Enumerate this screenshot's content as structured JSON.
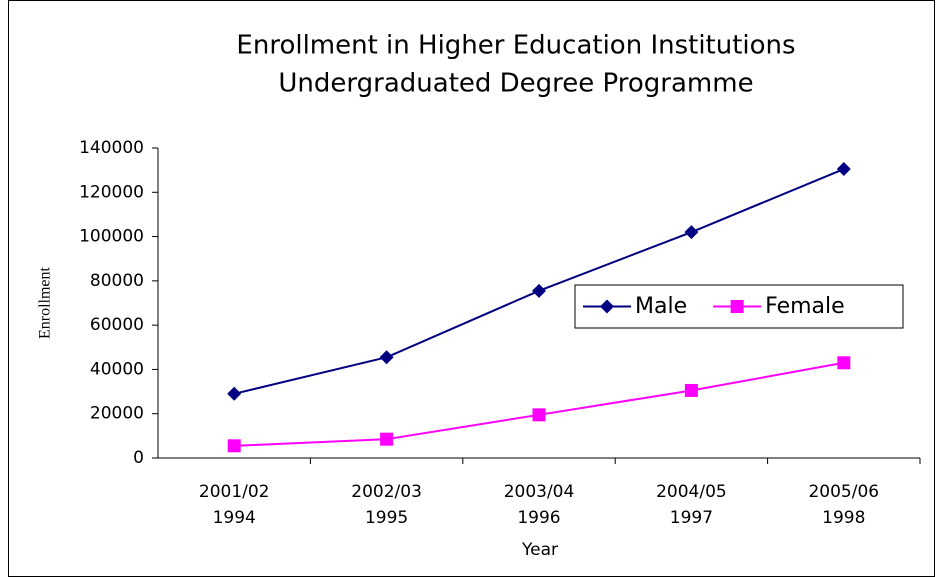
{
  "chart_data": {
    "type": "line",
    "title": "Enrollment in Higher Education Institutions",
    "subtitle": "Undergraduated Degree Programme",
    "x_label": "Year",
    "y_label": "Enrollment",
    "categories": [
      [
        "2001/02",
        "1994"
      ],
      [
        "2002/03",
        "1995"
      ],
      [
        "2003/04",
        "1996"
      ],
      [
        "2004/05",
        "1997"
      ],
      [
        "2005/06",
        "1998"
      ]
    ],
    "series": [
      {
        "name": "Male",
        "color": "#000080",
        "marker": "diamond",
        "values": [
          29000,
          45500,
          75500,
          102000,
          130500
        ]
      },
      {
        "name": "Female",
        "color": "#ff00ff",
        "marker": "square",
        "values": [
          5500,
          8500,
          19500,
          30500,
          43000
        ]
      }
    ],
    "ylim": [
      0,
      140000
    ],
    "yticks": [
      0,
      20000,
      40000,
      60000,
      80000,
      100000,
      120000,
      140000
    ],
    "grid": false,
    "legend": "right"
  }
}
